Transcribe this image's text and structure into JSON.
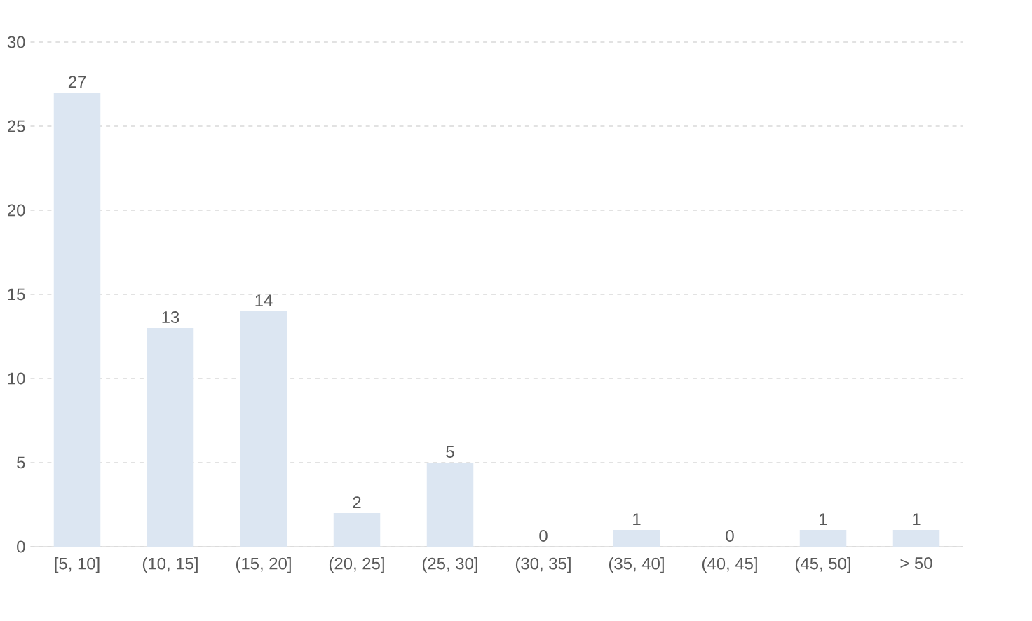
{
  "chart_data": {
    "type": "bar",
    "categories": [
      "[5, 10]",
      "(10, 15]",
      "(15, 20]",
      "(20, 25]",
      "(25, 30]",
      "(30, 35]",
      "(35, 40]",
      "(40, 45]",
      "(45, 50]",
      "> 50"
    ],
    "values": [
      27,
      13,
      14,
      2,
      5,
      0,
      1,
      0,
      1,
      1
    ],
    "color": "#dce6f2",
    "ylim": [
      0,
      30
    ],
    "yticks": [
      0,
      5,
      10,
      15,
      20,
      25,
      30
    ],
    "grid": "y",
    "data_labels": true
  }
}
